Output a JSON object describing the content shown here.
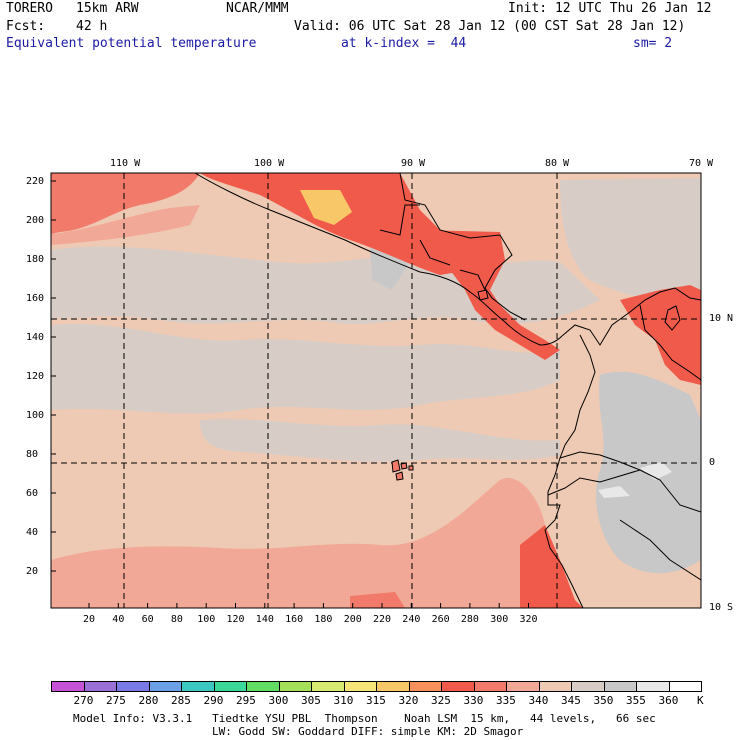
{
  "header": {
    "model": "TORERO",
    "resolution": "15km ARW",
    "org": "NCAR/MMM",
    "init": "Init: 12 UTC Thu 26 Jan 12",
    "fcst_label": "Fcst:",
    "fcst_value": "42 h",
    "valid": "Valid: 06 UTC Sat 28 Jan 12 (00 CST Sat 28 Jan 12)",
    "field": "Equivalent potential temperature",
    "level": "at k-index =  44",
    "smooth": "sm= 2"
  },
  "map": {
    "top_lon_labels": [
      "110 W",
      "100 W",
      "90 W",
      "80 W",
      "70 W"
    ],
    "right_lat_labels": [
      "10 N",
      "0",
      "10 S"
    ],
    "left_y_ticks": [
      "220",
      "200",
      "180",
      "160",
      "140",
      "120",
      "100",
      "80",
      "60",
      "40",
      "20"
    ],
    "bottom_x_ticks": [
      "20",
      "40",
      "60",
      "80",
      "100",
      "120",
      "140",
      "160",
      "180",
      "200",
      "220",
      "240",
      "260",
      "280",
      "300",
      "320"
    ]
  },
  "colorbar": {
    "labels": [
      "270",
      "275",
      "280",
      "285",
      "290",
      "295",
      "300",
      "305",
      "310",
      "315",
      "320",
      "325",
      "330",
      "335",
      "340",
      "345",
      "350",
      "355",
      "360"
    ],
    "unit": "K",
    "colors": [
      "#c653d6",
      "#9a70d6",
      "#7a7ae6",
      "#6aa0e6",
      "#3cc8c0",
      "#3cd89a",
      "#62dc62",
      "#a6e05a",
      "#d8ea72",
      "#f6e67a",
      "#f8c868",
      "#f8905c",
      "#f05a4a",
      "#f27a6a",
      "#f2a896",
      "#eecab4",
      "#d8cdc6",
      "#c8c8c8",
      "#e8e8e8",
      "#ffffff"
    ]
  },
  "footer": {
    "line1": "Model Info: V3.3.1   Tiedtke YSU PBL  Thompson    Noah LSM  15 km,   44 levels,   66 sec",
    "line2": "LW: Godd SW: Goddard DIFF: simple KM: 2D Smagor"
  }
}
